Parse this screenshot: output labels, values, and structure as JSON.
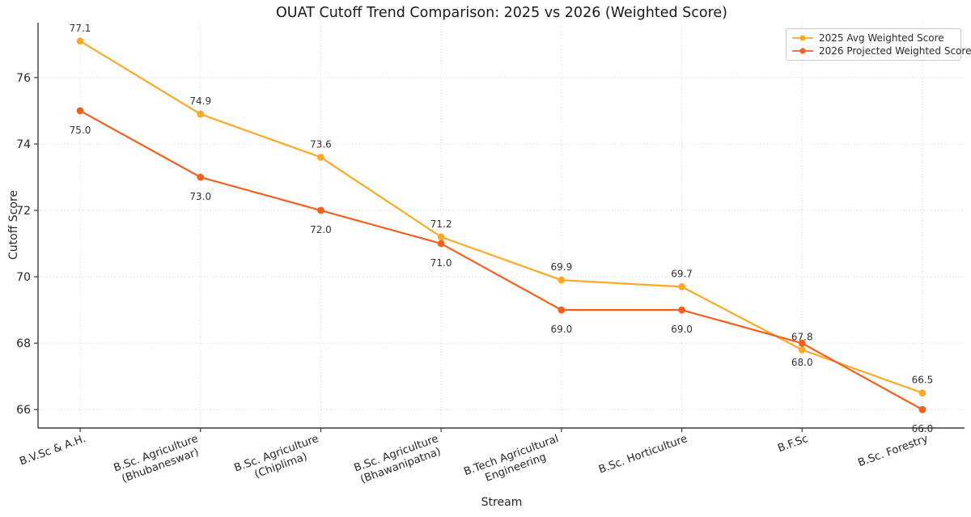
{
  "chart_data": {
    "type": "line",
    "title": "OUAT Cutoff Trend Comparison: 2025 vs 2026 (Weighted Score)",
    "xlabel": "Stream",
    "ylabel": "Cutoff Score",
    "categories": [
      "B.V.Sc & A.H.",
      "B.Sc. Agriculture\n(Bhubaneswar)",
      "B.Sc. Agriculture\n(Chiplima)",
      "B.Sc. Agriculture\n(Bhawanipatna)",
      "B.Tech Agricultural\nEngineering",
      "B.Sc. Horticulture",
      "B.F.Sc",
      "B.Sc. Forestry"
    ],
    "series": [
      {
        "name": "2025 Avg Weighted Score",
        "color": "#FFA826",
        "values": [
          77.1,
          74.9,
          73.6,
          71.2,
          69.9,
          69.7,
          67.8,
          66.5
        ],
        "label_position": "above"
      },
      {
        "name": "2026 Projected Weighted Score",
        "color": "#F2611E",
        "values": [
          75.0,
          73.0,
          72.0,
          71.0,
          69.0,
          69.0,
          68.0,
          66.0
        ],
        "label_position": "below"
      }
    ],
    "yticks": [
      66,
      68,
      70,
      72,
      74,
      76
    ],
    "ylim": [
      65.445,
      77.655
    ],
    "grid": true,
    "grid_style": "dotted",
    "legend_position": "upper right",
    "colors": {
      "grid": "#d8d8d8",
      "spine": "#3a3a3a",
      "tick_label": "#262626",
      "data_label": "#333333",
      "background": "#ffffff"
    }
  }
}
